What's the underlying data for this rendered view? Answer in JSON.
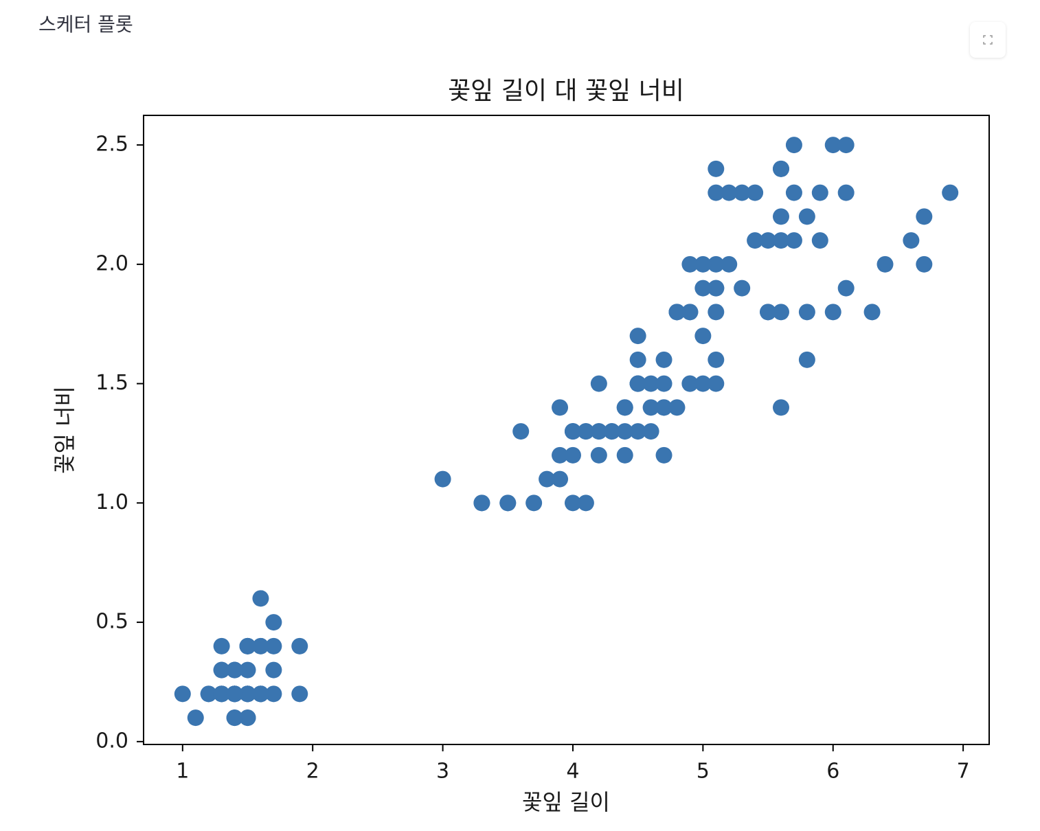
{
  "header": {
    "title": "스케터 플롯"
  },
  "chart_data": {
    "type": "scatter",
    "title": "꽃잎 길이 대 꽃잎 너비",
    "x_label": "꽃잎 길이",
    "y_label": "꽃잎 너비",
    "color": "#3a75b0",
    "x": [
      1.4,
      1.4,
      1.3,
      1.5,
      1.4,
      1.7,
      1.4,
      1.5,
      1.4,
      1.5,
      1.5,
      1.6,
      1.4,
      1.1,
      1.2,
      1.5,
      1.3,
      1.4,
      1.7,
      1.5,
      1.7,
      1.5,
      1.0,
      1.7,
      1.9,
      1.6,
      1.6,
      1.5,
      1.4,
      1.6,
      1.6,
      1.5,
      1.5,
      1.4,
      1.5,
      1.2,
      1.3,
      1.4,
      1.3,
      1.5,
      1.3,
      1.3,
      1.3,
      1.6,
      1.9,
      1.4,
      1.6,
      1.4,
      1.5,
      1.4,
      4.7,
      4.5,
      4.9,
      4.0,
      4.6,
      4.5,
      4.7,
      3.3,
      4.6,
      3.9,
      3.5,
      4.2,
      4.0,
      4.7,
      3.6,
      4.4,
      4.5,
      4.1,
      4.5,
      3.9,
      4.8,
      4.0,
      4.9,
      4.7,
      4.3,
      4.4,
      4.8,
      5.0,
      4.5,
      3.5,
      3.8,
      3.7,
      3.9,
      5.1,
      4.5,
      4.5,
      4.7,
      4.4,
      4.1,
      4.0,
      4.4,
      4.6,
      4.0,
      3.3,
      4.2,
      4.2,
      4.2,
      4.3,
      3.0,
      4.1,
      6.0,
      5.1,
      5.9,
      5.6,
      5.8,
      6.6,
      4.5,
      6.3,
      5.8,
      6.1,
      5.1,
      5.3,
      5.5,
      5.0,
      5.1,
      5.3,
      5.5,
      6.7,
      6.9,
      5.0,
      5.7,
      4.9,
      6.7,
      4.9,
      5.7,
      6.0,
      4.8,
      4.9,
      5.6,
      5.8,
      6.1,
      6.4,
      5.6,
      5.1,
      5.6,
      6.1,
      5.6,
      5.5,
      4.8,
      5.4,
      5.6,
      5.1,
      5.1,
      5.9,
      5.7,
      5.2,
      5.0,
      5.2,
      5.4,
      5.1
    ],
    "values": [
      0.2,
      0.2,
      0.2,
      0.2,
      0.2,
      0.4,
      0.3,
      0.2,
      0.2,
      0.1,
      0.2,
      0.2,
      0.1,
      0.1,
      0.2,
      0.4,
      0.4,
      0.3,
      0.3,
      0.3,
      0.2,
      0.4,
      0.2,
      0.5,
      0.2,
      0.2,
      0.4,
      0.2,
      0.2,
      0.2,
      0.2,
      0.4,
      0.1,
      0.2,
      0.2,
      0.2,
      0.2,
      0.1,
      0.2,
      0.2,
      0.3,
      0.3,
      0.2,
      0.6,
      0.4,
      0.3,
      0.2,
      0.2,
      0.2,
      0.2,
      1.4,
      1.5,
      1.5,
      1.3,
      1.5,
      1.3,
      1.6,
      1.0,
      1.3,
      1.4,
      1.0,
      1.5,
      1.0,
      1.4,
      1.3,
      1.4,
      1.5,
      1.0,
      1.5,
      1.1,
      1.8,
      1.3,
      1.5,
      1.2,
      1.3,
      1.4,
      1.4,
      1.7,
      1.5,
      1.0,
      1.1,
      1.0,
      1.2,
      1.6,
      1.5,
      1.6,
      1.5,
      1.3,
      1.3,
      1.3,
      1.2,
      1.4,
      1.2,
      1.0,
      1.3,
      1.2,
      1.3,
      1.3,
      1.1,
      1.3,
      2.5,
      1.9,
      2.1,
      1.8,
      2.2,
      2.1,
      1.7,
      1.8,
      1.8,
      2.5,
      2.0,
      1.9,
      2.1,
      2.0,
      2.4,
      2.3,
      1.8,
      2.2,
      2.3,
      1.5,
      2.3,
      2.0,
      2.0,
      1.8,
      2.1,
      1.8,
      1.8,
      1.8,
      2.1,
      1.6,
      1.9,
      2.0,
      2.2,
      1.5,
      1.4,
      2.3,
      2.4,
      1.8,
      1.8,
      2.1,
      2.4,
      2.3,
      1.9,
      2.3,
      2.5,
      2.3,
      1.9,
      2.0,
      2.3,
      1.8
    ],
    "xlim": [
      0.7,
      7.2
    ],
    "ylim": [
      -0.012,
      2.624
    ],
    "xticks": [
      1,
      2,
      3,
      4,
      5,
      6,
      7
    ],
    "yticks": [
      {
        "value": 0,
        "label": "0.0"
      },
      0.5,
      {
        "value": 1,
        "label": "1.0"
      },
      1.5,
      {
        "value": 2,
        "label": "2.0"
      },
      2.5
    ]
  }
}
